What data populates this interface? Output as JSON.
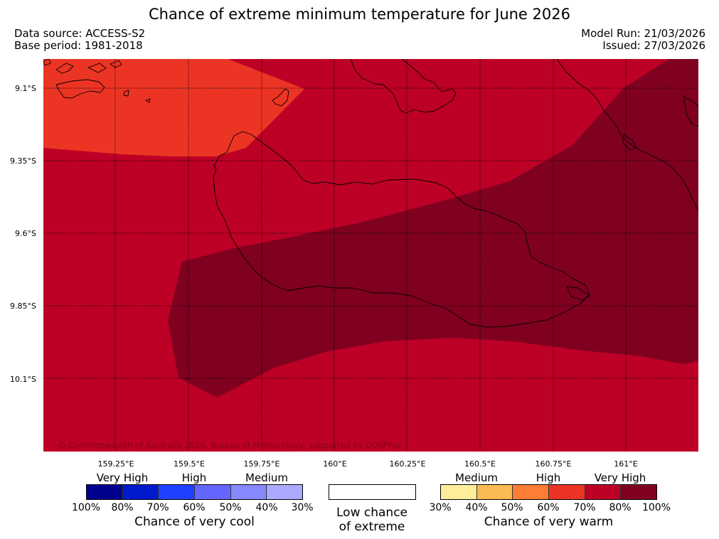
{
  "title": "Chance of extreme minimum temperature for June 2026",
  "data_source": "Data source: ACCESS-S2",
  "base_period": "Base period: 1981-2018",
  "model_run": "Model Run: 21/03/2026",
  "issued": "Issued: 27/03/2026",
  "copyright": "© Commonwealth of Australia 2026, Bureau of Meteorology, supported by COSPPac",
  "lat_labels": [
    "9.1°S",
    "9.35°S",
    "9.6°S",
    "9.85°S",
    "10.1°S"
  ],
  "lon_labels": [
    "159.25°E",
    "159.5°E",
    "159.75°E",
    "160°E",
    "160.25°E",
    "160.5°E",
    "160.75°E",
    "161°E"
  ],
  "cool_scale": {
    "categories": [
      "Very High",
      "High",
      "Medium"
    ],
    "percentages": [
      "100%",
      "80%",
      "70%",
      "60%",
      "50%",
      "40%",
      "30%"
    ],
    "colors": [
      "#00008f",
      "#0019cc",
      "#2040ff",
      "#6666ff",
      "#8888ff",
      "#aaaaff"
    ],
    "title": "Chance of very cool"
  },
  "low_chance": {
    "line1": "Low chance",
    "line2": "of extreme"
  },
  "warm_scale": {
    "categories": [
      "Medium",
      "High",
      "Very High"
    ],
    "percentages": [
      "30%",
      "40%",
      "50%",
      "60%",
      "70%",
      "80%",
      "100%"
    ],
    "colors": [
      "#ffee99",
      "#fcba55",
      "#fd7d35",
      "#ec3424",
      "#bd0026",
      "#800020"
    ],
    "title": "Chance of very warm"
  },
  "map_colors": {
    "band_70_80": "#bd0026",
    "band_80_100": "#800020",
    "band_60_70": "#ec3424"
  }
}
